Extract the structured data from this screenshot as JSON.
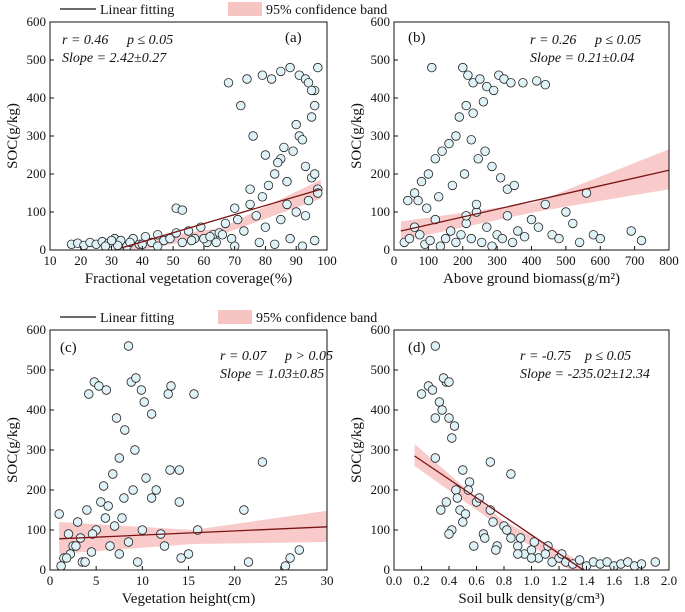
{
  "legend": {
    "line_label": "Linear fitting",
    "band_label": "95% confidence band",
    "line_color": "#7a1414",
    "band_color": "#f08a8a"
  },
  "chart_data": [
    {
      "type": "scatter",
      "panel": "(a)",
      "xlabel": "Fractional vegetation coverage(%)",
      "ylabel": "SOC(g/kg)",
      "xlim": [
        10,
        100
      ],
      "ylim": [
        0,
        600
      ],
      "xticks": [
        "10",
        "20",
        "30",
        "40",
        "50",
        "60",
        "70",
        "80",
        "90",
        "100"
      ],
      "yticks": [
        "0",
        "100",
        "200",
        "300",
        "400",
        "500",
        "600"
      ],
      "stats": {
        "r": "r = 0.46",
        "p": "p ≤ 0.05",
        "slope": "Slope = 2.42±0.27"
      },
      "fit": {
        "x0": 33,
        "x1": 98,
        "y0": 5,
        "y1": 160,
        "band_lo0": -10,
        "band_lo1": 135,
        "band_mid_lo": 40,
        "band_mid_hi": 58,
        "band_hi0": 20,
        "band_hi1": 185
      },
      "points_x": [
        17,
        19,
        21,
        23,
        25,
        27,
        29,
        31,
        33,
        35,
        37,
        39,
        41,
        43,
        45,
        47,
        49,
        51,
        53,
        55,
        57,
        59,
        61,
        63,
        65,
        67,
        69,
        71,
        73,
        75,
        77,
        79,
        81,
        83,
        85,
        87,
        89,
        91,
        93,
        95,
        96,
        97,
        51,
        53,
        68,
        74,
        79,
        82,
        85,
        88,
        91,
        93,
        94,
        95,
        96,
        72,
        76,
        80,
        84,
        86,
        90,
        92,
        95,
        97,
        70,
        78,
        83,
        88,
        92,
        96,
        64,
        60,
        56,
        45,
        40,
        36,
        32,
        30,
        28,
        80,
        85,
        90,
        94,
        97,
        70,
        75,
        87,
        93,
        96,
        66,
        62
      ],
      "points_y": [
        15,
        18,
        12,
        20,
        15,
        22,
        18,
        30,
        25,
        10,
        30,
        15,
        35,
        20,
        40,
        25,
        30,
        45,
        20,
        50,
        30,
        60,
        20,
        40,
        45,
        70,
        30,
        80,
        50,
        120,
        90,
        140,
        170,
        200,
        240,
        180,
        260,
        300,
        220,
        350,
        420,
        480,
        110,
        105,
        440,
        450,
        460,
        450,
        470,
        480,
        460,
        450,
        440,
        420,
        380,
        380,
        300,
        250,
        230,
        270,
        330,
        290,
        190,
        160,
        10,
        20,
        15,
        30,
        10,
        25,
        20,
        30,
        25,
        10,
        15,
        20,
        12,
        25,
        10,
        60,
        80,
        100,
        130,
        150,
        110,
        160,
        120,
        90,
        200,
        40,
        35
      ]
    },
    {
      "type": "scatter",
      "panel": "(b)",
      "xlabel": "Above ground biomass(g/m²)",
      "ylabel": "SOC(g/kg)",
      "xlim": [
        0,
        800
      ],
      "ylim": [
        0,
        600
      ],
      "xticks": [
        "0",
        "100",
        "200",
        "300",
        "400",
        "500",
        "600",
        "700",
        "800"
      ],
      "yticks": [
        "0",
        "100",
        "200",
        "300",
        "400",
        "500",
        "600"
      ],
      "stats": {
        "r": "r = 0.26",
        "p": "p ≤ 0.05",
        "slope": "Slope = 0.21±0.04"
      },
      "fit": {
        "x0": 20,
        "x1": 800,
        "y0": 50,
        "y1": 210,
        "band_lo0": 25,
        "band_lo1": 160,
        "band_mid_lo": 100,
        "band_mid_hi": 125,
        "band_hi0": 75,
        "band_hi1": 265
      },
      "points_x": [
        30,
        45,
        60,
        75,
        90,
        105,
        120,
        135,
        150,
        165,
        180,
        195,
        210,
        225,
        240,
        255,
        270,
        285,
        300,
        315,
        330,
        345,
        360,
        380,
        400,
        420,
        440,
        460,
        480,
        500,
        520,
        540,
        560,
        580,
        600,
        690,
        720,
        110,
        200,
        215,
        230,
        250,
        270,
        290,
        305,
        320,
        340,
        375,
        415,
        440,
        210,
        190,
        260,
        230,
        180,
        160,
        140,
        120,
        100,
        80,
        60,
        40,
        70,
        95,
        130,
        170,
        205,
        245,
        285,
        330,
        225,
        265,
        310,
        350,
        240,
        210
      ],
      "points_y": [
        20,
        30,
        60,
        40,
        15,
        25,
        80,
        10,
        30,
        50,
        20,
        40,
        70,
        30,
        100,
        20,
        60,
        10,
        40,
        30,
        90,
        20,
        50,
        35,
        80,
        60,
        120,
        40,
        30,
        100,
        70,
        20,
        150,
        40,
        30,
        50,
        25,
        480,
        480,
        460,
        440,
        450,
        430,
        420,
        460,
        450,
        440,
        440,
        445,
        435,
        380,
        350,
        390,
        360,
        300,
        280,
        260,
        240,
        200,
        180,
        150,
        130,
        130,
        110,
        140,
        170,
        200,
        240,
        220,
        160,
        290,
        260,
        190,
        170,
        120,
        90
      ]
    },
    {
      "type": "scatter",
      "panel": "(c)",
      "xlabel": "Vegetation height(cm)",
      "ylabel": "SOC(g/kg)",
      "xlim": [
        0,
        30
      ],
      "ylim": [
        0,
        600
      ],
      "xticks": [
        "0",
        "5",
        "10",
        "15",
        "20",
        "25",
        "30"
      ],
      "yticks": [
        "0",
        "100",
        "200",
        "300",
        "400",
        "500",
        "600"
      ],
      "stats": {
        "r": "r = 0.07",
        "p": "p > 0.05",
        "slope": "Slope = 1.03±0.85"
      },
      "fit": {
        "x0": 1,
        "x1": 30,
        "y0": 78,
        "y1": 108,
        "band_lo0": 40,
        "band_lo1": 70,
        "band_mid_lo": 65,
        "band_mid_hi": 100,
        "band_hi0": 120,
        "band_hi1": 148
      },
      "points_x": [
        1,
        1.5,
        2,
        2.5,
        3,
        3.5,
        4,
        4.5,
        5,
        5.5,
        6,
        6.5,
        7,
        7.5,
        8,
        8.5,
        9,
        9.5,
        10,
        11,
        12,
        13,
        14,
        15,
        16,
        21,
        23,
        26,
        27,
        4.2,
        4.8,
        5.3,
        6.1,
        7.2,
        8.1,
        8.8,
        9.3,
        9.9,
        10.2,
        11,
        12.8,
        13.1,
        14,
        15.6,
        8.5,
        9.2,
        7.5,
        6.8,
        5.8,
        3.3,
        2.8,
        2.2,
        1.8,
        1.2,
        3.8,
        4.6,
        6.3,
        7.8,
        10.4,
        11.5,
        12.4,
        14.2,
        21.5,
        25.5
      ],
      "points_y": [
        140,
        30,
        90,
        60,
        120,
        20,
        150,
        45,
        100,
        170,
        130,
        60,
        110,
        40,
        180,
        70,
        200,
        20,
        100,
        180,
        90,
        250,
        170,
        40,
        100,
        150,
        270,
        30,
        50,
        440,
        470,
        460,
        450,
        380,
        350,
        470,
        480,
        450,
        420,
        390,
        440,
        460,
        250,
        440,
        560,
        300,
        280,
        240,
        210,
        80,
        60,
        40,
        30,
        10,
        20,
        90,
        160,
        130,
        230,
        200,
        60,
        30,
        20,
        10
      ]
    },
    {
      "type": "scatter",
      "panel": "(d)",
      "xlabel": "Soil bulk density(g/cm³)",
      "ylabel": "SOC(g/kg)",
      "xlim": [
        0.0,
        2.0
      ],
      "ylim": [
        0,
        600
      ],
      "xticks": [
        "0.0",
        "0.2",
        "0.4",
        "0.6",
        "0.8",
        "1.0",
        "1.2",
        "1.4",
        "1.6",
        "1.8",
        "2.0"
      ],
      "yticks": [
        "0",
        "100",
        "200",
        "300",
        "400",
        "500",
        "600"
      ],
      "stats": {
        "r": "r = -0.75",
        "p": "p ≤ 0.05",
        "slope": "Slope = -235.02±12.34"
      },
      "fit": {
        "x0": 0.15,
        "x1": 1.42,
        "y0": 285,
        "y1": -10,
        "band_lo0": 260,
        "band_lo1": -30,
        "band_mid_lo": 105,
        "band_mid_hi": 125,
        "band_hi0": 315,
        "band_hi1": 10
      },
      "points_x": [
        0.2,
        0.25,
        0.28,
        0.3,
        0.33,
        0.35,
        0.38,
        0.4,
        0.42,
        0.45,
        0.48,
        0.5,
        0.55,
        0.6,
        0.65,
        0.7,
        0.75,
        0.8,
        0.85,
        0.9,
        0.95,
        1.0,
        1.05,
        1.1,
        1.15,
        1.2,
        1.25,
        1.3,
        1.35,
        1.4,
        1.45,
        1.5,
        1.55,
        1.6,
        1.65,
        1.7,
        1.75,
        1.8,
        1.9,
        0.3,
        0.36,
        0.4,
        0.44,
        0.38,
        0.52,
        0.62,
        0.72,
        0.82,
        0.92,
        1.02,
        1.12,
        1.22,
        0.34,
        0.42,
        0.5,
        0.58,
        0.66,
        0.74,
        0.9,
        1.0,
        0.46,
        0.54,
        0.7,
        0.85,
        0.3,
        0.4
      ],
      "points_y": [
        440,
        460,
        450,
        380,
        420,
        400,
        470,
        380,
        330,
        200,
        150,
        250,
        220,
        170,
        90,
        150,
        60,
        110,
        80,
        60,
        40,
        50,
        30,
        40,
        20,
        30,
        20,
        15,
        25,
        10,
        20,
        15,
        20,
        10,
        15,
        20,
        10,
        15,
        20,
        560,
        480,
        470,
        360,
        170,
        140,
        180,
        120,
        100,
        80,
        70,
        60,
        40,
        150,
        100,
        120,
        60,
        80,
        50,
        40,
        30,
        180,
        200,
        270,
        240,
        280,
        90
      ]
    }
  ]
}
